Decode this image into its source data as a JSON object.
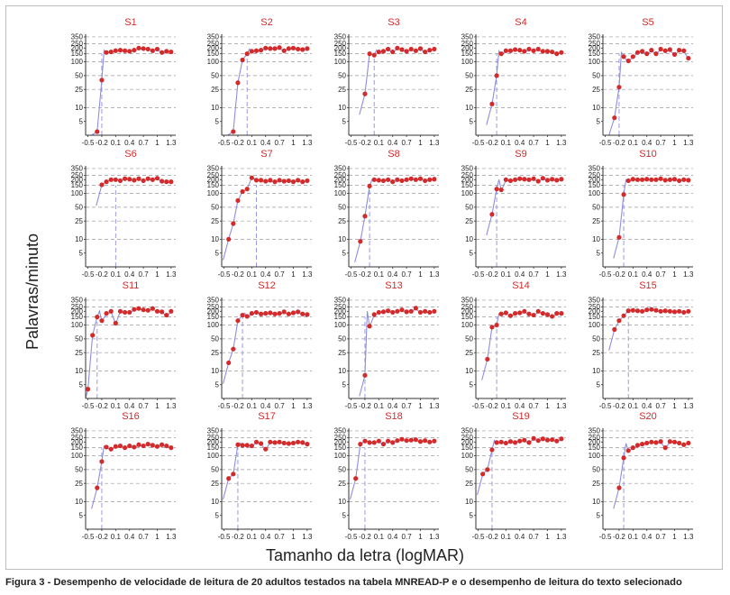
{
  "figure": {
    "ylabel": "Palavras/minuto",
    "xlabel": "Tamanho da letra (logMAR)",
    "caption": "Figura 3 - Desempenho de velocidade de leitura de 20 adultos testados na tabela MNREAD-P e o desempenho de leitura do texto selecionado"
  },
  "colors": {
    "point": "#d42a2a",
    "fit_line": "#8e8ee0",
    "grid": "#9a9a9a",
    "axis": "#333333",
    "title": "#d42a2a"
  },
  "chart_data": {
    "type": "scatter",
    "layout": "small-multiples 4x5",
    "xlabel": "Tamanho da letra (logMAR)",
    "ylabel": "Palavras/minuto",
    "yscale": "log",
    "ylim": [
      2.5,
      400
    ],
    "xlim": [
      -0.55,
      1.4
    ],
    "xticks": [
      -0.5,
      -0.2,
      0.1,
      0.4,
      0.7,
      1,
      1.3
    ],
    "xtick_labels": [
      "-0.5",
      "-0.2",
      "0.1",
      "0.4",
      "0.7",
      "1",
      "1.3"
    ],
    "yticks": [
      5,
      10,
      25,
      50,
      100,
      150,
      200,
      250,
      350
    ],
    "ytick_labels": [
      "5",
      "10",
      "25",
      "50",
      "100",
      "150",
      "200",
      "250",
      "350"
    ],
    "grid_y": [
      10,
      25,
      50,
      100,
      150,
      250,
      350
    ],
    "x": [
      -0.5,
      -0.4,
      -0.3,
      -0.2,
      -0.1,
      0.0,
      0.1,
      0.2,
      0.3,
      0.4,
      0.5,
      0.6,
      0.7,
      0.8,
      0.9,
      1.0,
      1.1,
      1.2,
      1.3
    ],
    "panels": [
      {
        "title": "S1",
        "cps": -0.2,
        "y": [
          null,
          null,
          3,
          40,
          160,
          165,
          175,
          180,
          175,
          170,
          180,
          200,
          195,
          190,
          175,
          190,
          160,
          170,
          165
        ]
      },
      {
        "title": "S2",
        "cps": 0.0,
        "y": [
          null,
          null,
          3,
          35,
          110,
          150,
          170,
          175,
          180,
          200,
          195,
          195,
          205,
          175,
          195,
          200,
          190,
          185,
          195
        ]
      },
      {
        "title": "S3",
        "cps": 0.0,
        "y": [
          null,
          null,
          null,
          20,
          150,
          140,
          165,
          170,
          190,
          165,
          200,
          185,
          170,
          190,
          175,
          195,
          165,
          180,
          190
        ]
      },
      {
        "title": "S4",
        "cps": -0.1,
        "y": [
          null,
          null,
          null,
          12,
          50,
          150,
          175,
          175,
          185,
          180,
          170,
          190,
          175,
          190,
          170,
          170,
          165,
          150,
          160
        ]
      },
      {
        "title": "S5",
        "cps": -0.2,
        "y": [
          null,
          null,
          6,
          28,
          130,
          105,
          130,
          160,
          170,
          150,
          180,
          150,
          190,
          175,
          185,
          145,
          180,
          175,
          120
        ]
      },
      {
        "title": "S6",
        "cps": 0.1,
        "y": [
          null,
          null,
          null,
          155,
          180,
          200,
          200,
          190,
          210,
          205,
          195,
          210,
          190,
          210,
          200,
          215,
          185,
          180,
          180
        ]
      },
      {
        "title": "S7",
        "cps": 0.2,
        "y": [
          null,
          10,
          22,
          70,
          110,
          125,
          220,
          195,
          195,
          185,
          195,
          180,
          195,
          185,
          190,
          180,
          195,
          180,
          190
        ]
      },
      {
        "title": "S8",
        "cps": -0.1,
        "y": [
          null,
          null,
          9,
          32,
          145,
          200,
          195,
          190,
          200,
          180,
          200,
          190,
          200,
          210,
          200,
          210,
          190,
          200,
          205
        ]
      },
      {
        "title": "S9",
        "cps": -0.1,
        "y": [
          null,
          null,
          null,
          35,
          125,
          120,
          200,
          190,
          200,
          210,
          205,
          200,
          210,
          185,
          215,
          195,
          205,
          195,
          205
        ]
      },
      {
        "title": "S10",
        "cps": -0.1,
        "y": [
          null,
          null,
          null,
          11,
          95,
          190,
          205,
          200,
          200,
          205,
          200,
          200,
          210,
          195,
          200,
          205,
          190,
          200,
          195
        ]
      },
      {
        "title": "S11",
        "cps": -0.3,
        "y": [
          4,
          60,
          150,
          125,
          180,
          200,
          110,
          200,
          190,
          190,
          220,
          230,
          215,
          210,
          230,
          200,
          195,
          165,
          200
        ]
      },
      {
        "title": "S12",
        "cps": -0.1,
        "y": [
          null,
          15,
          30,
          125,
          165,
          155,
          180,
          190,
          175,
          180,
          185,
          175,
          180,
          195,
          175,
          185,
          195,
          175,
          170
        ]
      },
      {
        "title": "S13",
        "cps": -0.2,
        "y": [
          null,
          null,
          null,
          8,
          95,
          170,
          190,
          195,
          205,
          190,
          200,
          215,
          195,
          200,
          235,
          190,
          200,
          190,
          200
        ]
      },
      {
        "title": "S14",
        "cps": -0.1,
        "y": [
          null,
          null,
          18,
          90,
          100,
          175,
          185,
          160,
          180,
          185,
          200,
          175,
          165,
          200,
          180,
          170,
          155,
          180,
          180
        ]
      },
      {
        "title": "S15",
        "cps": 0.0,
        "y": [
          null,
          null,
          80,
          125,
          160,
          205,
          210,
          205,
          200,
          215,
          220,
          210,
          200,
          205,
          200,
          195,
          200,
          190,
          200
        ]
      },
      {
        "title": "S16",
        "cps": -0.2,
        "y": [
          null,
          null,
          20,
          75,
          155,
          140,
          160,
          165,
          150,
          165,
          155,
          175,
          165,
          180,
          170,
          160,
          175,
          165,
          150
        ]
      },
      {
        "title": "S17",
        "cps": -0.2,
        "y": [
          null,
          32,
          40,
          175,
          170,
          170,
          165,
          200,
          185,
          140,
          200,
          195,
          200,
          190,
          185,
          190,
          200,
          195,
          180
        ]
      },
      {
        "title": "S18",
        "cps": -0.2,
        "y": [
          null,
          32,
          180,
          210,
          195,
          195,
          210,
          180,
          210,
          195,
          215,
          230,
          215,
          220,
          225,
          205,
          215,
          200,
          210
        ]
      },
      {
        "title": "S19",
        "cps": -0.2,
        "y": [
          null,
          40,
          50,
          135,
          195,
          200,
          190,
          205,
          195,
          210,
          220,
          195,
          240,
          215,
          235,
          220,
          225,
          210,
          235
        ]
      },
      {
        "title": "S20",
        "cps": -0.1,
        "y": [
          null,
          null,
          null,
          20,
          90,
          130,
          150,
          170,
          180,
          190,
          200,
          195,
          205,
          150,
          205,
          200,
          190,
          175,
          190
        ]
      }
    ]
  }
}
